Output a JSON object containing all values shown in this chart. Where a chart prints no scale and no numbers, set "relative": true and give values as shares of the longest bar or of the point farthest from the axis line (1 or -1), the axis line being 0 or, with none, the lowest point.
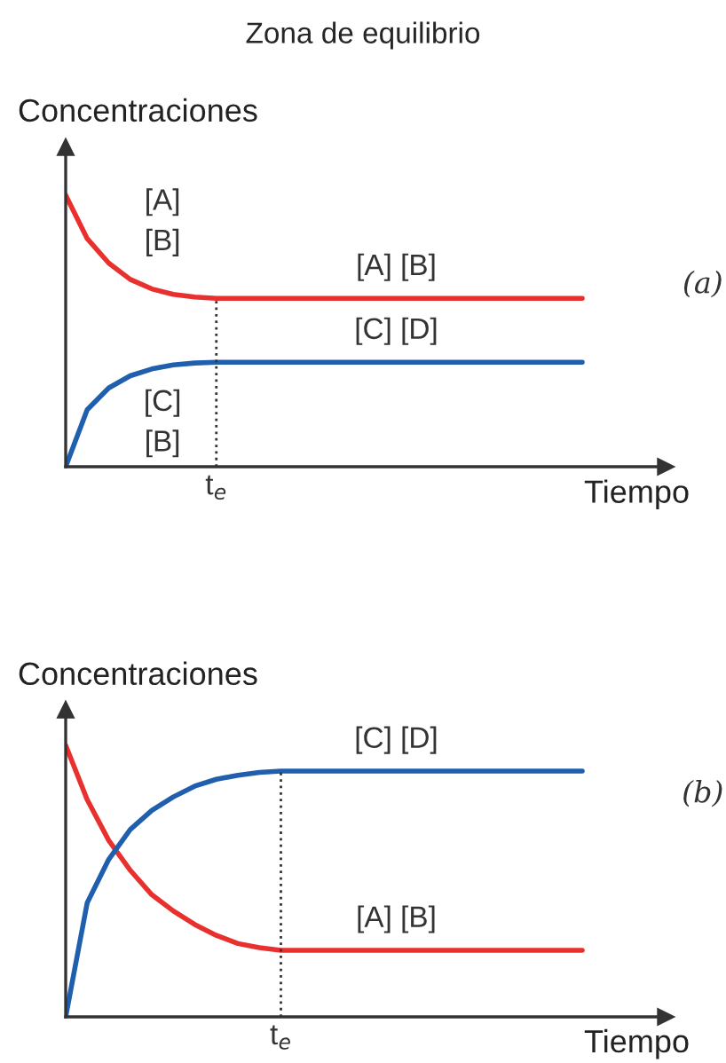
{
  "chart_data": [
    {
      "type": "line",
      "relative": true,
      "title": "Zona de equilibrio",
      "xlabel": "Tiempo",
      "ylabel": "Concentraciones",
      "categories": [
        null,
        null,
        null,
        null,
        null,
        null,
        null,
        null,
        null,
        null,
        null,
        null,
        null,
        null,
        null,
        null,
        null,
        null,
        null,
        null,
        null,
        null,
        null,
        null,
        null
      ],
      "series": [
        {
          "name": "[A] [B]",
          "color": "#e8312f",
          "values": [
            1,
            0.84,
            0.75,
            0.69,
            0.655,
            0.635,
            0.625,
            0.62,
            0.62,
            0.62,
            0.62,
            0.62,
            0.62,
            0.62,
            0.62,
            0.62,
            0.62,
            0.62,
            0.62,
            0.62,
            0.62,
            0.62,
            0.62,
            0.62,
            0.62
          ]
        },
        {
          "name": "[C] [D]",
          "color": "#1f5fae",
          "values": [
            0,
            0.21,
            0.29,
            0.335,
            0.36,
            0.375,
            0.382,
            0.385,
            0.385,
            0.385,
            0.385,
            0.385,
            0.385,
            0.385,
            0.385,
            0.385,
            0.385,
            0.385,
            0.385,
            0.385,
            0.385,
            0.385,
            0.385,
            0.385,
            0.385
          ]
        }
      ],
      "annotations": [
        "[A]\n[B]",
        "[C]\n[B]",
        "(a)",
        "t$_{e}$"
      ]
    },
    {
      "type": "line",
      "relative": true,
      "xlabel": "Tiempo",
      "ylabel": "Concentraciones",
      "categories": [
        null,
        null,
        null,
        null,
        null,
        null,
        null,
        null,
        null,
        null,
        null,
        null,
        null,
        null,
        null,
        null,
        null,
        null,
        null,
        null,
        null,
        null,
        null,
        null,
        null
      ],
      "series": [
        {
          "name": "[A] [B]",
          "color": "#e8312f",
          "values": [
            1,
            0.8,
            0.65,
            0.54,
            0.45,
            0.39,
            0.34,
            0.3,
            0.27,
            0.255,
            0.245,
            0.245,
            0.245,
            0.245,
            0.245,
            0.245,
            0.245,
            0.245,
            0.245,
            0.245,
            0.245,
            0.245,
            0.245,
            0.245,
            0.245
          ]
        },
        {
          "name": "[C] [D]",
          "color": "#1f5fae",
          "values": [
            0,
            0.42,
            0.58,
            0.69,
            0.76,
            0.81,
            0.85,
            0.875,
            0.89,
            0.9,
            0.905,
            0.905,
            0.905,
            0.905,
            0.905,
            0.905,
            0.905,
            0.905,
            0.905,
            0.905,
            0.905,
            0.905,
            0.905,
            0.905,
            0.905
          ]
        }
      ],
      "annotations": [
        "(b)",
        "t$_{e}$"
      ]
    }
  ]
}
